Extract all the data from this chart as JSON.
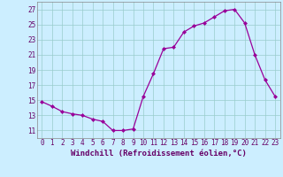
{
  "x": [
    0,
    1,
    2,
    3,
    4,
    5,
    6,
    7,
    8,
    9,
    10,
    11,
    12,
    13,
    14,
    15,
    16,
    17,
    18,
    19,
    20,
    21,
    22,
    23
  ],
  "y": [
    14.8,
    14.2,
    13.5,
    13.2,
    13.0,
    12.5,
    12.2,
    11.0,
    11.0,
    11.2,
    15.5,
    18.5,
    21.8,
    22.0,
    24.0,
    24.8,
    25.2,
    26.0,
    26.8,
    27.0,
    25.2,
    21.0,
    17.7,
    15.5
  ],
  "line_color": "#990099",
  "marker": "D",
  "marker_size": 2.0,
  "bg_color": "#cceeff",
  "grid_color": "#99cccc",
  "xlabel": "Windchill (Refroidissement éolien,°C)",
  "xlabel_fontsize": 6.5,
  "ylim": [
    10.0,
    28.0
  ],
  "yticks": [
    11,
    13,
    15,
    17,
    19,
    21,
    23,
    25,
    27
  ],
  "xticks": [
    0,
    1,
    2,
    3,
    4,
    5,
    6,
    7,
    8,
    9,
    10,
    11,
    12,
    13,
    14,
    15,
    16,
    17,
    18,
    19,
    20,
    21,
    22,
    23
  ],
  "tick_fontsize": 5.5,
  "label_color": "#660066"
}
